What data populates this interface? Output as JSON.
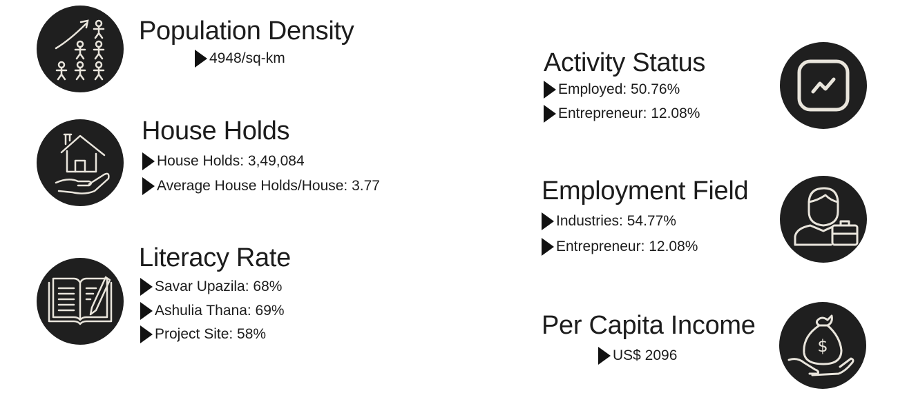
{
  "sections": {
    "population": {
      "title": "Population Density",
      "icon": "population-growth-icon",
      "items": [
        "4948/sq-km"
      ]
    },
    "households": {
      "title": "House Holds",
      "icon": "house-in-hand-icon",
      "items": [
        "House Holds: 3,49,084",
        "Average House Holds/House: 3.77"
      ]
    },
    "literacy": {
      "title": "Literacy Rate",
      "icon": "open-book-pencil-icon",
      "items": [
        "Savar Upazila: 68%",
        "Ashulia Thana: 69%",
        "Project Site: 58%"
      ]
    },
    "activity": {
      "title": "Activity Status",
      "icon": "activity-chart-icon",
      "items": [
        "Employed: 50.76%",
        "Entrepreneur: 12.08%"
      ]
    },
    "employment": {
      "title": "Employment Field",
      "icon": "worker-briefcase-icon",
      "items": [
        "Industries: 54.77%",
        "Entrepreneur: 12.08%"
      ]
    },
    "income": {
      "title": "Per Capita Income",
      "icon": "money-bag-hand-icon",
      "items": [
        "US$ 2096"
      ]
    }
  },
  "colors": {
    "icon_bg": "#1f1f1f",
    "icon_line": "#e9e5dc",
    "text": "#1c1c1c"
  }
}
